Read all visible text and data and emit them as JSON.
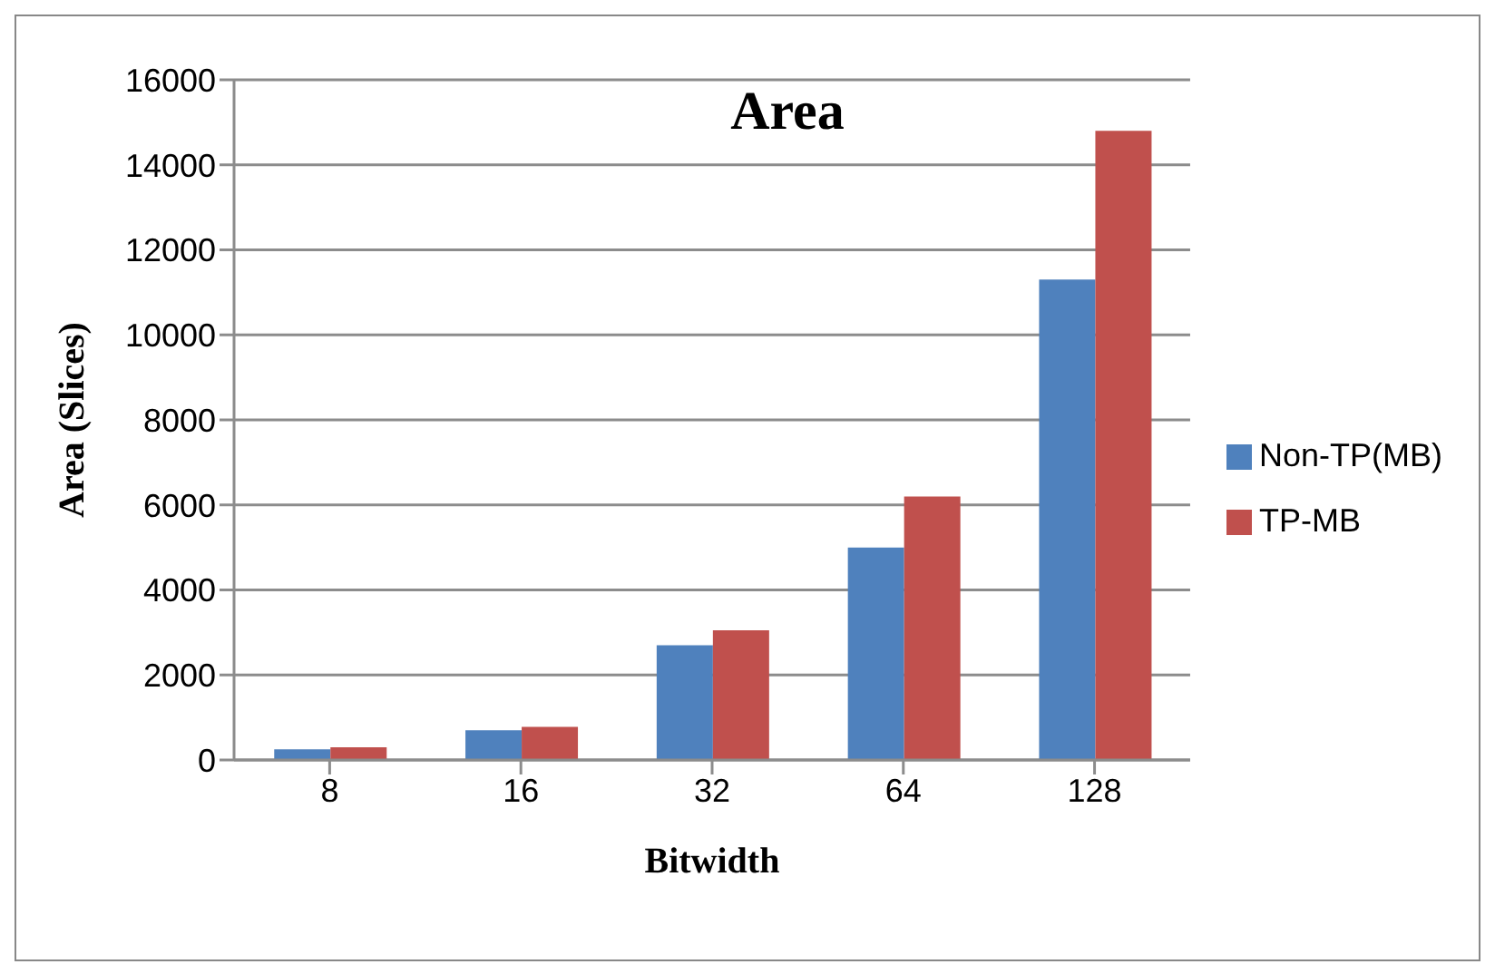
{
  "chart_data": {
    "type": "bar",
    "title": "Area",
    "xlabel": "Bitwidth",
    "ylabel": "Area (Slices)",
    "categories": [
      "8",
      "16",
      "32",
      "64",
      "128"
    ],
    "series": [
      {
        "name": "Non-TP(MB)",
        "color": "#4f81bd",
        "values": [
          250,
          700,
          2700,
          5000,
          11300
        ]
      },
      {
        "name": "TP-MB",
        "color": "#c0504d",
        "values": [
          300,
          780,
          3050,
          6200,
          14800
        ]
      }
    ],
    "ylim": [
      0,
      16000
    ],
    "yticks": [
      0,
      2000,
      4000,
      6000,
      8000,
      10000,
      12000,
      14000,
      16000
    ],
    "grid": "y",
    "legend": "right"
  }
}
